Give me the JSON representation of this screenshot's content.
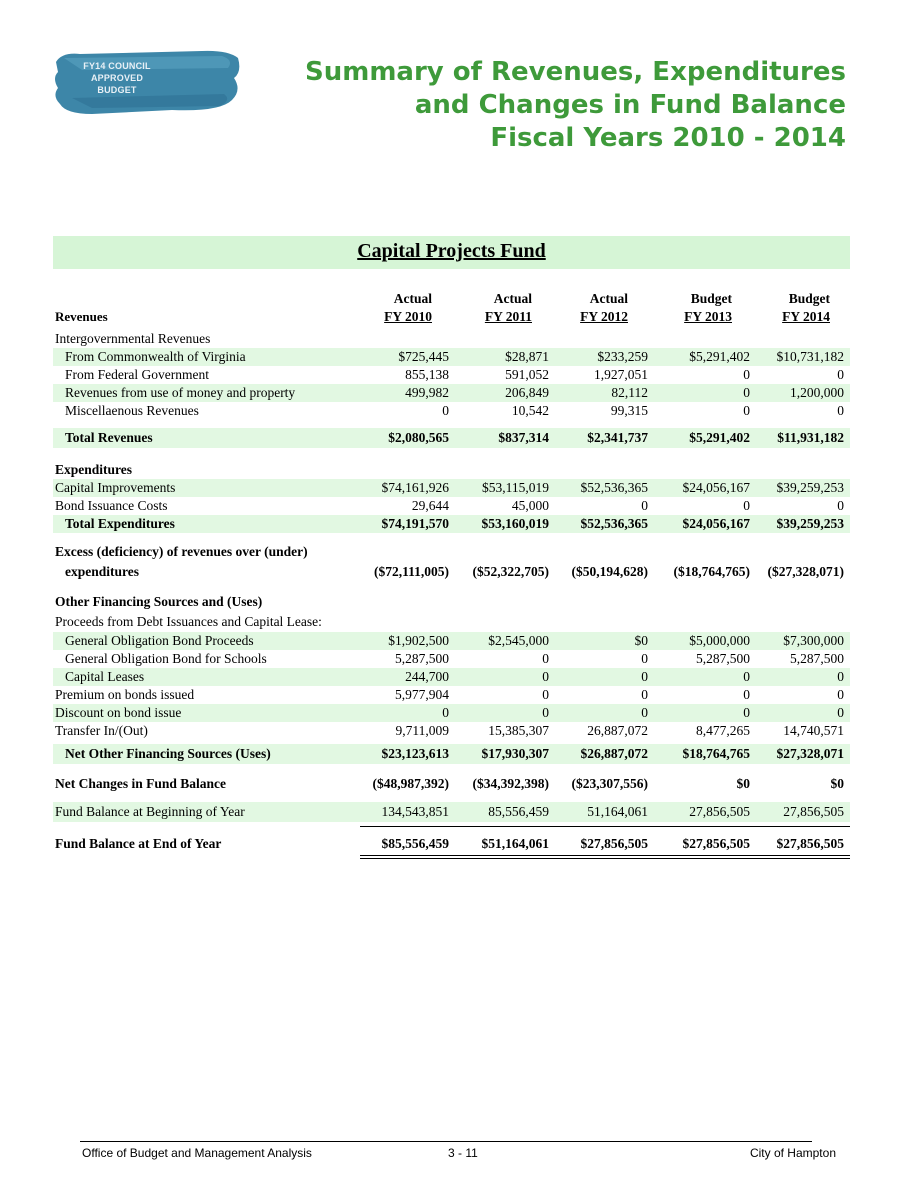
{
  "badge": {
    "lines": [
      "FY14 COUNCIL",
      "APPROVED",
      "BUDGET"
    ]
  },
  "title": {
    "lines": [
      "Summary of Revenues, Expenditures",
      "and Changes in Fund Balance",
      "Fiscal Years 2010 - 2014"
    ]
  },
  "fund_title": "Capital Projects Fund",
  "columns": [
    {
      "top": "Actual",
      "bottom": "FY 2010"
    },
    {
      "top": "Actual",
      "bottom": "FY 2011"
    },
    {
      "top": "Actual",
      "bottom": "FY 2012"
    },
    {
      "top": "Budget",
      "bottom": "FY 2013"
    },
    {
      "top": "Budget",
      "bottom": "FY 2014"
    }
  ],
  "revenues_header": "Revenues",
  "rows": {
    "intergov": {
      "label": "Intergovernmental Revenues"
    },
    "commonwealth": {
      "label": "From Commonwealth of Virginia",
      "values": [
        "$725,445",
        "$28,871",
        "$233,259",
        "$5,291,402",
        "$10,731,182"
      ]
    },
    "federal": {
      "label": "From Federal Government",
      "values": [
        "855,138",
        "591,052",
        "1,927,051",
        "0",
        "0"
      ]
    },
    "use_money": {
      "label": "Revenues from use of money and property",
      "values": [
        "499,982",
        "206,849",
        "82,112",
        "0",
        "1,200,000"
      ]
    },
    "misc": {
      "label": "Miscellaenous Revenues",
      "values": [
        "0",
        "10,542",
        "99,315",
        "0",
        "0"
      ]
    },
    "total_revenues": {
      "label": "Total Revenues",
      "values": [
        "$2,080,565",
        "$837,314",
        "$2,341,737",
        "$5,291,402",
        "$11,931,182"
      ]
    },
    "expenditures": {
      "label": "Expenditures"
    },
    "capital_improvements": {
      "label": "Capital Improvements",
      "values": [
        "$74,161,926",
        "$53,115,019",
        "$52,536,365",
        "$24,056,167",
        "$39,259,253"
      ]
    },
    "bond_issuance": {
      "label": "Bond Issuance Costs",
      "values": [
        "29,644",
        "45,000",
        "0",
        "0",
        "0"
      ]
    },
    "total_expenditures": {
      "label": "Total Expenditures",
      "values": [
        "$74,191,570",
        "$53,160,019",
        "$52,536,365",
        "$24,056,167",
        "$39,259,253"
      ]
    },
    "excess_line1": {
      "label": "Excess (deficiency) of revenues over (under)"
    },
    "excess": {
      "label": "expenditures",
      "values": [
        "($72,111,005)",
        "($52,322,705)",
        "($50,194,628)",
        "($18,764,765)",
        "($27,328,071)"
      ]
    },
    "other_financing": {
      "label": "Other Financing Sources and (Uses)"
    },
    "proceeds": {
      "label": "Proceeds from Debt Issuances and Capital Lease:"
    },
    "go_bond": {
      "label": "General Obligation Bond Proceeds",
      "values": [
        "$1,902,500",
        "$2,545,000",
        "$0",
        "$5,000,000",
        "$7,300,000"
      ]
    },
    "go_schools": {
      "label": "General Obligation Bond for Schools",
      "values": [
        "5,287,500",
        "0",
        "0",
        "5,287,500",
        "5,287,500"
      ]
    },
    "capital_leases": {
      "label": "Capital Leases",
      "values": [
        "244,700",
        "0",
        "0",
        "0",
        "0"
      ]
    },
    "premium": {
      "label": "Premium on bonds issued",
      "values": [
        "5,977,904",
        "0",
        "0",
        "0",
        "0"
      ]
    },
    "discount": {
      "label": "Discount on bond issue",
      "values": [
        "0",
        "0",
        "0",
        "0",
        "0"
      ]
    },
    "transfer": {
      "label": "Transfer In/(Out)",
      "values": [
        "9,711,009",
        "15,385,307",
        "26,887,072",
        "8,477,265",
        "14,740,571"
      ]
    },
    "net_other": {
      "label": "Net Other Financing Sources (Uses)",
      "values": [
        "$23,123,613",
        "$17,930,307",
        "$26,887,072",
        "$18,764,765",
        "$27,328,071"
      ]
    },
    "net_changes": {
      "label": "Net Changes in Fund Balance",
      "values": [
        "($48,987,392)",
        "($34,392,398)",
        "($23,307,556)",
        "$0",
        "$0"
      ]
    },
    "fb_begin": {
      "label": "Fund Balance at Beginning of Year",
      "values": [
        "134,543,851",
        "85,556,459",
        "51,164,061",
        "27,856,505",
        "27,856,505"
      ]
    },
    "fb_end": {
      "label": "Fund Balance at End of Year",
      "values": [
        "$85,556,459",
        "$51,164,061",
        "$27,856,505",
        "$27,856,505",
        "$27,856,505"
      ]
    }
  },
  "footer": {
    "left": "Office of Budget and Management Analysis",
    "center": "3 - 11",
    "right": "City of Hampton"
  },
  "colors": {
    "title_green": "#3e9a3a",
    "band_green": "#d6f5d6",
    "row_shade": "#e2f8e2",
    "badge_blue": "#3d86a8"
  }
}
